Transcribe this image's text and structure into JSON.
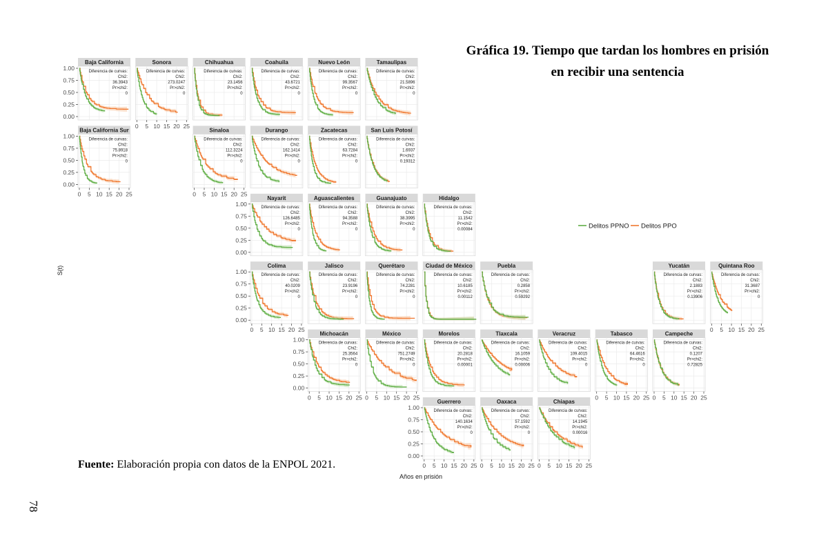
{
  "title": {
    "prefix": "Gráfica 19.",
    "line1": "Tiempo que tardan los hombres en prisión",
    "line2": "en recibir una sentencia"
  },
  "source": {
    "prefix": "Fuente:",
    "text": "Elaboración propia con datos de la ENPOL 2021."
  },
  "page_number": "78",
  "colors": {
    "ppno": "#5fae45",
    "ppo": "#f0772e",
    "ppo_ci": "#f7c7a3",
    "ppno_ci": "#b9dcaa",
    "strip_bg": "#d9d9d9",
    "grid": "#ebebeb"
  },
  "chart_data": {
    "type": "line",
    "subtype": "kaplan-meier facet grid",
    "ylabel": "S(t)",
    "xlabel": "Años en prisión",
    "ylim": [
      0,
      1
    ],
    "y_ticks": [
      "0.00",
      "0.25",
      "0.50",
      "0.75",
      "1.00"
    ],
    "x_ticks": [
      "0",
      "5",
      "10",
      "15",
      "20",
      "25"
    ],
    "legend": {
      "placement": "right",
      "entries": [
        "Delitos PPNO",
        "Delitos PPO"
      ]
    },
    "annotation_labels": {
      "header": "Diferencia de curvas:",
      "chi2": "Chi2:",
      "p": "Pr>chi2:"
    },
    "panels": [
      {
        "state": "Baja California",
        "chi2": "36.3943",
        "p": "0",
        "row": 0,
        "col": 0,
        "ppno_k": 0.32,
        "ppo_k": 0.26,
        "ppno_end": 12,
        "ppo_end": 24,
        "ppno_floor": 0.1,
        "ppo_floor": 0.15
      },
      {
        "state": "Sonora",
        "chi2": "273.0247",
        "p": "0",
        "row": 0,
        "col": 1,
        "ppno_k": 0.35,
        "ppo_k": 0.17,
        "ppno_end": 10,
        "ppo_end": 20,
        "ppno_floor": 0.02,
        "ppo_floor": 0.06
      },
      {
        "state": "Chihuahua",
        "chi2": "23.1456",
        "p": "0",
        "row": 0,
        "col": 2,
        "ppno_k": 0.6,
        "ppo_k": 0.5,
        "ppno_end": 12,
        "ppo_end": 14,
        "ppno_floor": 0.02,
        "ppo_floor": 0.03
      },
      {
        "state": "Coahuila",
        "chi2": "43.6721",
        "p": "0",
        "row": 0,
        "col": 3,
        "ppno_k": 0.4,
        "ppo_k": 0.3,
        "ppno_end": 14,
        "ppo_end": 22,
        "ppno_floor": 0.04,
        "ppo_floor": 0.08
      },
      {
        "state": "Nuevo León",
        "chi2": "99.3567",
        "p": "0",
        "row": 0,
        "col": 4,
        "ppno_k": 0.45,
        "ppo_k": 0.28,
        "ppno_end": 12,
        "ppo_end": 22,
        "ppno_floor": 0.03,
        "ppo_floor": 0.08
      },
      {
        "state": "Tamaulipas",
        "chi2": "21.5896",
        "p": "0",
        "row": 0,
        "col": 5,
        "ppno_k": 0.22,
        "ppo_k": 0.18,
        "ppno_end": 14,
        "ppo_end": 22,
        "ppno_floor": 0.02,
        "ppo_floor": 0.05
      },
      {
        "state": "Baja California Sur",
        "chi2": "75.8918",
        "p": "0",
        "row": 1,
        "col": 0,
        "ppno_k": 0.55,
        "ppo_k": 0.25,
        "ppno_end": 8,
        "ppo_end": 20,
        "ppno_floor": 0.02,
        "ppo_floor": 0.05
      },
      {
        "state": "Sinaloa",
        "chi2": "112.3224",
        "p": "0",
        "row": 1,
        "col": 2,
        "ppno_k": 0.3,
        "ppo_k": 0.17,
        "ppno_end": 14,
        "ppo_end": 20,
        "ppno_floor": 0.02,
        "ppo_floor": 0.08
      },
      {
        "state": "Durango",
        "chi2": "162.1414",
        "p": "0",
        "row": 1,
        "col": 3,
        "ppno_k": 0.3,
        "ppo_k": 0.13,
        "ppno_end": 14,
        "ppo_end": 22,
        "ppno_floor": 0.05,
        "ppo_floor": 0.14
      },
      {
        "state": "Zacatecas",
        "chi2": "63.7284",
        "p": "0",
        "row": 1,
        "col": 4,
        "ppno_k": 0.5,
        "ppo_k": 0.3,
        "ppno_end": 10,
        "ppo_end": 12,
        "ppno_floor": 0.02,
        "ppo_floor": 0.03
      },
      {
        "state": "San Luis Potosí",
        "chi2": "1.6937",
        "p": "0.19312",
        "row": 1,
        "col": 5,
        "ppno_k": 0.3,
        "ppo_k": 0.28,
        "ppno_end": 10,
        "ppo_end": 11,
        "ppno_floor": 0.02,
        "ppo_floor": 0.02
      },
      {
        "state": "Nayarit",
        "chi2": "126.6485",
        "p": "0",
        "row": 2,
        "col": 3,
        "ppno_k": 0.32,
        "ppo_k": 0.14,
        "ppno_end": 20,
        "ppo_end": 20,
        "ppno_floor": 0.1,
        "ppo_floor": 0.2
      },
      {
        "state": "Aguascalientes",
        "chi2": "94.3588",
        "p": "0",
        "row": 2,
        "col": 4,
        "ppno_k": 0.55,
        "ppo_k": 0.3,
        "ppno_end": 8,
        "ppo_end": 15,
        "ppno_floor": 0.02,
        "ppo_floor": 0.04
      },
      {
        "state": "Guanajuato",
        "chi2": "38.3995",
        "p": "0",
        "row": 2,
        "col": 5,
        "ppno_k": 0.4,
        "ppo_k": 0.28,
        "ppno_end": 12,
        "ppo_end": 17,
        "ppno_floor": 0.02,
        "ppo_floor": 0.04
      },
      {
        "state": "Hidalgo",
        "chi2": "11.1542",
        "p": "0.00084",
        "row": 2,
        "col": 6,
        "ppno_k": 0.45,
        "ppo_k": 0.38,
        "ppno_end": 12,
        "ppo_end": 14,
        "ppno_floor": 0.02,
        "ppo_floor": 0.02
      },
      {
        "state": "Colima",
        "chi2": "40.0209",
        "p": "0",
        "row": 3,
        "col": 3,
        "ppno_k": 0.35,
        "ppo_k": 0.22,
        "ppno_end": 14,
        "ppo_end": 18,
        "ppno_floor": 0.05,
        "ppo_floor": 0.08
      },
      {
        "state": "Jalisco",
        "chi2": "23.9196",
        "p": "0",
        "row": 3,
        "col": 4,
        "ppno_k": 0.4,
        "ppo_k": 0.3,
        "ppno_end": 16,
        "ppo_end": 22,
        "ppno_floor": 0.02,
        "ppo_floor": 0.03
      },
      {
        "state": "Querétaro",
        "chi2": "74.2281",
        "p": "0",
        "row": 3,
        "col": 5,
        "ppno_k": 0.7,
        "ppo_k": 0.42,
        "ppno_end": 8,
        "ppo_end": 22,
        "ppno_floor": 0.02,
        "ppo_floor": 0.04
      },
      {
        "state": "Ciudad de México",
        "chi2": "10.6185",
        "p": "0.00112",
        "row": 3,
        "col": 6,
        "ppno_k": 0.9,
        "ppo_k": 0.85,
        "ppno_end": 25,
        "ppo_end": 25,
        "ppno_floor": 0.02,
        "ppo_floor": 0.02
      },
      {
        "state": "Puebla",
        "chi2": "0.2858",
        "p": "0.59292",
        "row": 3,
        "col": 7,
        "ppno_k": 0.3,
        "ppo_k": 0.3,
        "ppno_end": 22,
        "ppo_end": 22,
        "ppno_floor": 0.06,
        "ppo_floor": 0.05
      },
      {
        "state": "Yucatán",
        "chi2": "2.1883",
        "p": "0.13906",
        "row": 3,
        "col": 10,
        "ppno_k": 0.4,
        "ppo_k": 0.36,
        "ppno_end": 12,
        "ppo_end": 14,
        "ppno_floor": 0.02,
        "ppo_floor": 0.02
      },
      {
        "state": "Quintana Roo",
        "chi2": "31.3687",
        "p": "0",
        "row": 3,
        "col": 11,
        "ppno_k": 0.32,
        "ppo_k": 0.2,
        "ppno_end": 8,
        "ppo_end": 10,
        "ppno_floor": 0.08,
        "ppo_floor": 0.08
      },
      {
        "state": "Michoacán",
        "chi2": "25.3564",
        "p": "0",
        "row": 4,
        "col": 4,
        "ppno_k": 0.28,
        "ppo_k": 0.2,
        "ppno_end": 20,
        "ppo_end": 20,
        "ppno_floor": 0.06,
        "ppo_floor": 0.1
      },
      {
        "state": "México",
        "chi2": "751.2749",
        "p": "0",
        "row": 4,
        "col": 5,
        "ppno_k": 0.35,
        "ppo_k": 0.1,
        "ppno_end": 18,
        "ppo_end": 24,
        "ppno_floor": 0.02,
        "ppo_floor": 0.08
      },
      {
        "state": "Morelos",
        "chi2": "20.2818",
        "p": "0.00001",
        "row": 4,
        "col": 6,
        "ppno_k": 0.4,
        "ppo_k": 0.28,
        "ppno_end": 14,
        "ppo_end": 20,
        "ppno_floor": 0.04,
        "ppo_floor": 0.06
      },
      {
        "state": "Tlaxcala",
        "chi2": "16.1059",
        "p": "0.00006",
        "row": 4,
        "col": 7,
        "ppno_k": 0.14,
        "ppo_k": 0.1,
        "ppno_end": 14,
        "ppo_end": 14,
        "ppno_floor": 0.15,
        "ppo_floor": 0.2
      },
      {
        "state": "Veracruz",
        "chi2": "109.4015",
        "p": "0",
        "row": 4,
        "col": 8,
        "ppno_k": 0.22,
        "ppo_k": 0.12,
        "ppno_end": 14,
        "ppo_end": 18,
        "ppno_floor": 0.06,
        "ppo_floor": 0.14
      },
      {
        "state": "Tabasco",
        "chi2": "64.4616",
        "p": "0",
        "row": 4,
        "col": 9,
        "ppno_k": 0.32,
        "ppo_k": 0.2,
        "ppno_end": 10,
        "ppo_end": 14,
        "ppno_floor": 0.02,
        "ppo_floor": 0.03
      },
      {
        "state": "Campeche",
        "chi2": "0.1207",
        "p": "0.72825",
        "row": 4,
        "col": 10,
        "ppno_k": 0.28,
        "ppo_k": 0.27,
        "ppno_end": 12,
        "ppo_end": 12,
        "ppno_floor": 0.03,
        "ppo_floor": 0.03
      },
      {
        "state": "Guerrero",
        "chi2": "140.1634",
        "p": "0",
        "row": 5,
        "col": 6,
        "ppno_k": 0.22,
        "ppo_k": 0.1,
        "ppno_end": 14,
        "ppo_end": 22,
        "ppno_floor": 0.03,
        "ppo_floor": 0.1
      },
      {
        "state": "Oaxaca",
        "chi2": "57.1592",
        "p": "0",
        "row": 5,
        "col": 7,
        "ppno_k": 0.18,
        "ppo_k": 0.11,
        "ppno_end": 14,
        "ppo_end": 20,
        "ppno_floor": 0.05,
        "ppo_floor": 0.12
      },
      {
        "state": "Chiapas",
        "chi2": "14.1945",
        "p": "0.00016",
        "row": 5,
        "col": 8,
        "ppno_k": 0.12,
        "ppo_k": 0.1,
        "ppno_end": 18,
        "ppo_end": 22,
        "ppno_floor": 0.06,
        "ppo_floor": 0.08
      }
    ],
    "y_axis_rows": [
      0,
      1,
      2,
      3,
      4,
      5
    ],
    "x_axis_cols": [
      0,
      1,
      2,
      3,
      4,
      5,
      6,
      7,
      8,
      9,
      10,
      11
    ]
  }
}
